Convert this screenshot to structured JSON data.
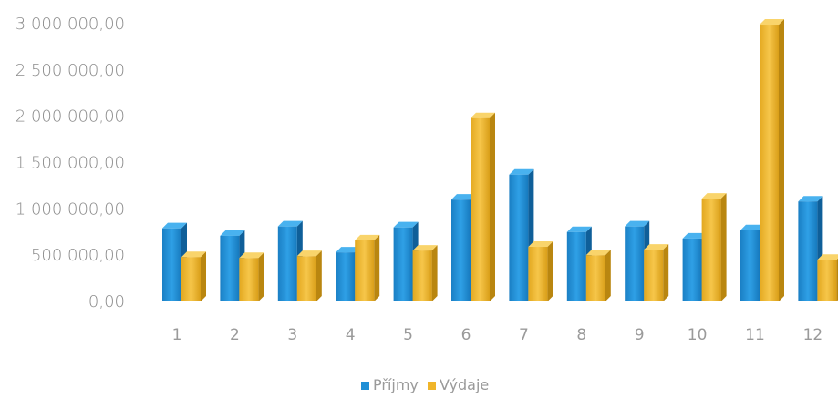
{
  "chart_data": {
    "type": "bar",
    "categories": [
      "1",
      "2",
      "3",
      "4",
      "5",
      "6",
      "7",
      "8",
      "9",
      "10",
      "11",
      "12"
    ],
    "series": [
      {
        "name": "Příjmy",
        "color": "#1f8fd6",
        "values": [
          790000,
          710000,
          810000,
          530000,
          800000,
          1100000,
          1370000,
          750000,
          810000,
          680000,
          770000,
          1080000
        ]
      },
      {
        "name": "Výdaje",
        "color": "#f0b52a",
        "values": [
          480000,
          470000,
          490000,
          660000,
          550000,
          1980000,
          590000,
          500000,
          560000,
          1110000,
          2990000,
          450000
        ]
      }
    ],
    "title": "",
    "xlabel": "",
    "ylabel": "",
    "ylim": [
      0,
      3000000
    ],
    "yticks": [
      {
        "value": 0,
        "label": "0,00"
      },
      {
        "value": 500000,
        "label": "500 000,00"
      },
      {
        "value": 1000000,
        "label": "1 000 000,00"
      },
      {
        "value": 1500000,
        "label": "1 500 000,00"
      },
      {
        "value": 2000000,
        "label": "2 000 000,00"
      },
      {
        "value": 2500000,
        "label": "2 500 000,00"
      },
      {
        "value": 3000000,
        "label": "3 000 000,00"
      }
    ],
    "grid": false,
    "legend": "bottom-center"
  }
}
